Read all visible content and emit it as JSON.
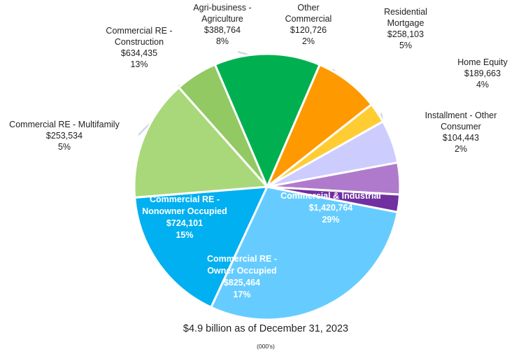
{
  "chart_data": {
    "type": "pie",
    "title": "",
    "caption": "$4.9 billion as of December 31, 2023",
    "units": "(000's)",
    "start_angle_deg": 11,
    "slices": [
      {
        "key": "ci",
        "lines": [
          "Commercial & Industrial",
          "$1,420,764",
          "29%"
        ],
        "value": 1420764,
        "percent": 29,
        "color": "#66ccff",
        "label_inside": true
      },
      {
        "key": "cre_owner",
        "lines": [
          "Commercial RE -",
          "Owner Occupied",
          "$825,464",
          "17%"
        ],
        "value": 825464,
        "percent": 17,
        "color": "#00b0f0",
        "label_inside": true
      },
      {
        "key": "cre_nonowner",
        "lines": [
          "Commercial RE -",
          "Nonowner Occupied",
          "$724,101",
          "15%"
        ],
        "value": 724101,
        "percent": 15,
        "color": "#a9d87a",
        "label_inside": true
      },
      {
        "key": "cre_multifamily",
        "lines": [
          "Commercial RE - Multifamily",
          "$253,534",
          "5%"
        ],
        "value": 253534,
        "percent": 5,
        "color": "#92c963",
        "label_inside": false
      },
      {
        "key": "cre_construction",
        "lines": [
          "Commercial RE -",
          "Construction",
          "$634,435",
          "13%"
        ],
        "value": 634435,
        "percent": 13,
        "color": "#00b050",
        "label_inside": false
      },
      {
        "key": "agri",
        "lines": [
          "Agri-business -",
          "Agriculture",
          "$388,764",
          "8%"
        ],
        "value": 388764,
        "percent": 8,
        "color": "#ff9900",
        "label_inside": false
      },
      {
        "key": "other_commercial",
        "lines": [
          "Other",
          "Commercial",
          "$120,726",
          "2%"
        ],
        "value": 120726,
        "percent": 2,
        "color": "#ffcc33",
        "label_inside": false
      },
      {
        "key": "residential",
        "lines": [
          "Residential",
          "Mortgage",
          "$258,103",
          "5%"
        ],
        "value": 258103,
        "percent": 5,
        "color": "#ccccff",
        "label_inside": false
      },
      {
        "key": "home_equity",
        "lines": [
          "Home Equity",
          "$189,663",
          "4%"
        ],
        "value": 189663,
        "percent": 4,
        "color": "#b07acc",
        "label_inside": false
      },
      {
        "key": "installment",
        "lines": [
          "Installment - Other",
          "Consumer",
          "$104,443",
          "2%"
        ],
        "value": 104443,
        "percent": 2,
        "color": "#7030a0",
        "label_inside": false
      }
    ]
  }
}
